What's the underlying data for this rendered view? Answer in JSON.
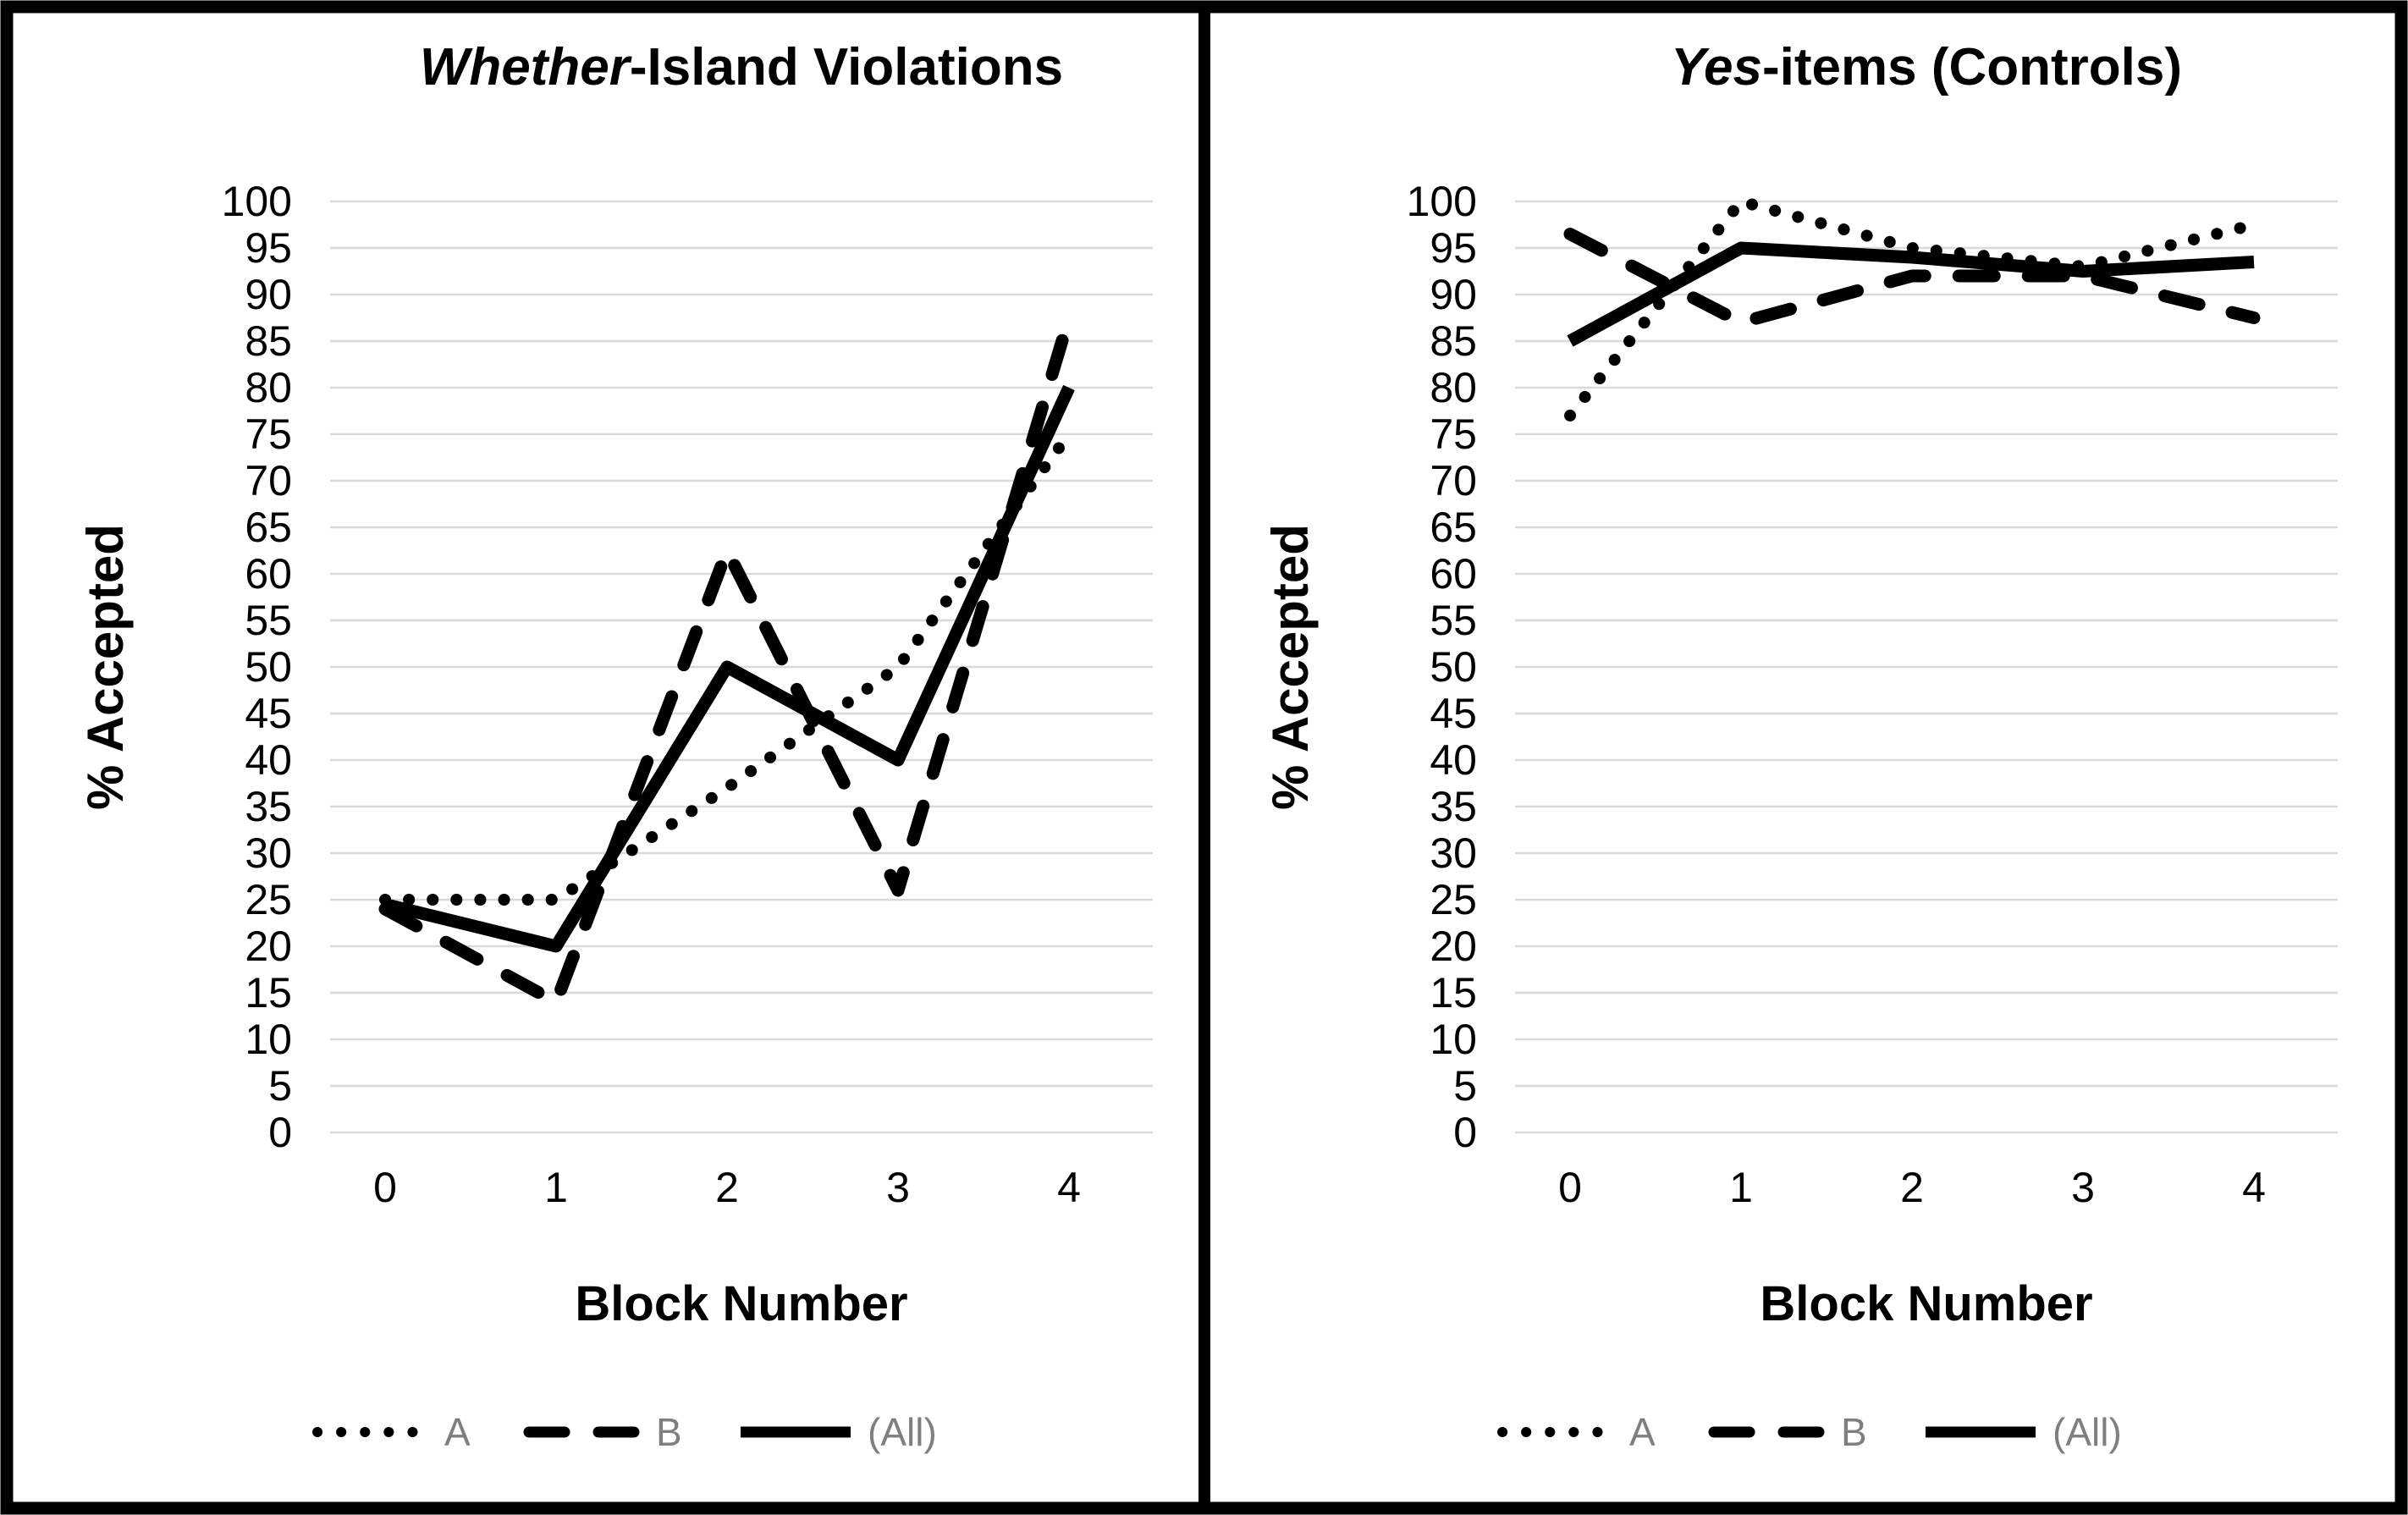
{
  "figure": {
    "background": "#ffffff",
    "frame_color": "#000000",
    "grid_color": "#d9d9d9",
    "line_color": "#000000",
    "legend_text_color": "#7f7f7f"
  },
  "axes": {
    "y_label": "% Accepted",
    "x_label": "Block Number",
    "y_ticks": [
      "100",
      "95",
      "90",
      "85",
      "80",
      "75",
      "70",
      "65",
      "60",
      "55",
      "50",
      "45",
      "40",
      "35",
      "30",
      "25",
      "20",
      "15",
      "10",
      "5",
      "0"
    ],
    "x_ticks": [
      "0",
      "1",
      "2",
      "3",
      "4"
    ],
    "ylim": [
      0,
      100
    ]
  },
  "legend": {
    "items": [
      {
        "label": "A",
        "style": "dotted"
      },
      {
        "label": "B",
        "style": "dashed"
      },
      {
        "label": "(All)",
        "style": "solid"
      }
    ]
  },
  "chart_data": [
    {
      "type": "line",
      "title": "Whether-Island Violations",
      "title_italic": "Whether",
      "title_rest": "-Island Violations",
      "xlabel": "Block Number",
      "ylabel": "% Accepted",
      "x": [
        0,
        1,
        2,
        3,
        4
      ],
      "ylim": [
        0,
        100
      ],
      "grid": true,
      "legend_position": "bottom",
      "series": [
        {
          "name": "A",
          "style": "dotted",
          "values": [
            25,
            25,
            37,
            50,
            75
          ]
        },
        {
          "name": "B",
          "style": "dashed",
          "values": [
            24,
            14,
            62.5,
            26,
            87.5
          ]
        },
        {
          "name": "(All)",
          "style": "solid",
          "values": [
            24.5,
            20,
            50,
            40,
            80
          ]
        }
      ]
    },
    {
      "type": "line",
      "title": "Yes-items (Controls)",
      "title_italic": "Yes",
      "title_rest": "-items (Controls)",
      "xlabel": "Block Number",
      "ylabel": "% Accepted",
      "x": [
        0,
        1,
        2,
        3,
        4
      ],
      "ylim": [
        0,
        100
      ],
      "grid": true,
      "legend_position": "bottom",
      "series": [
        {
          "name": "A",
          "style": "dotted",
          "values": [
            77,
            100,
            95,
            93,
            97.5
          ]
        },
        {
          "name": "B",
          "style": "dashed",
          "values": [
            96.5,
            87,
            92,
            92,
            87.5
          ]
        },
        {
          "name": "(All)",
          "style": "solid",
          "values": [
            85,
            95,
            94,
            92.5,
            93.5
          ]
        }
      ]
    }
  ]
}
